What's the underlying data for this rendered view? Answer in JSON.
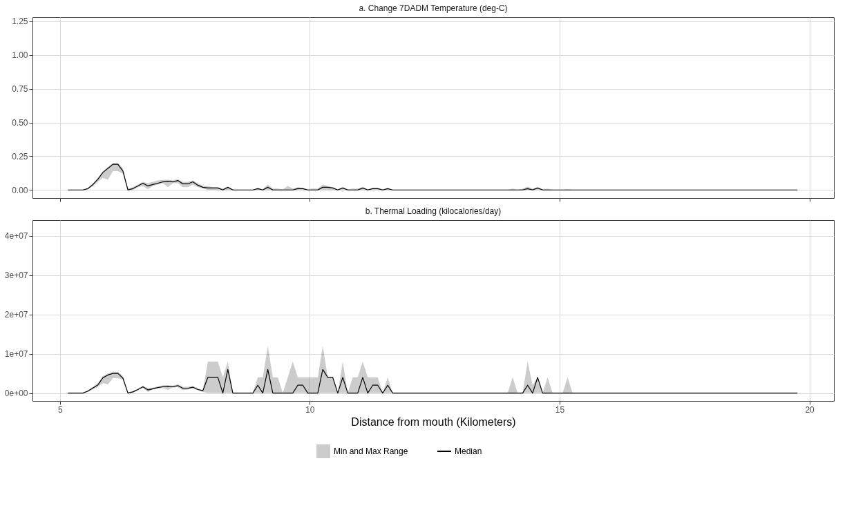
{
  "chart_data": [
    {
      "type": "line",
      "title": "a. Change 7DADM Temperature (deg-C)",
      "tick_labels": "y",
      "grid": true,
      "x": [
        5.16,
        5.46,
        5.56,
        5.66,
        5.76,
        5.86,
        5.96,
        6.06,
        6.16,
        6.26,
        6.36,
        6.46,
        6.56,
        6.66,
        6.76,
        6.86,
        6.96,
        7.06,
        7.16,
        7.26,
        7.36,
        7.46,
        7.56,
        7.66,
        7.76,
        7.86,
        7.96,
        8.06,
        8.16,
        8.26,
        8.36,
        8.46,
        8.56,
        8.86,
        8.96,
        9.06,
        9.16,
        9.26,
        9.36,
        9.46,
        9.56,
        9.66,
        9.76,
        9.86,
        9.96,
        10.06,
        10.16,
        10.26,
        10.36,
        10.46,
        10.56,
        10.66,
        10.76,
        10.86,
        10.96,
        11.06,
        11.16,
        11.26,
        11.36,
        11.46,
        11.56,
        11.66,
        13.96,
        14.06,
        14.16,
        14.26,
        14.36,
        14.46,
        14.56,
        14.66,
        14.76,
        14.86,
        14.96,
        15.06,
        15.16,
        15.26,
        19.76
      ],
      "xlim": [
        4.45,
        20.49
      ],
      "xticks": [
        5,
        10,
        15,
        20
      ],
      "ylim": [
        -0.06,
        1.28
      ],
      "yticks": [
        {
          "value": 0,
          "label": "0.00"
        },
        {
          "value": 0.25,
          "label": "0.25"
        },
        {
          "value": 0.5,
          "label": "0.50"
        },
        {
          "value": 0.75,
          "label": "0.75"
        },
        {
          "value": 1,
          "label": "1.00"
        },
        {
          "value": 1.25,
          "label": "1.25"
        }
      ],
      "series": [
        {
          "color": "#000000",
          "values": [
            0,
            0,
            0.01,
            0.04,
            0.08,
            0.13,
            0.16,
            0.19,
            0.19,
            0.14,
            0,
            0.01,
            0.03,
            0.05,
            0.03,
            0.04,
            0.05,
            0.06,
            0.065,
            0.06,
            0.07,
            0.045,
            0.045,
            0.06,
            0.035,
            0.02,
            0.015,
            0.015,
            0.015,
            0,
            0.02,
            0,
            0,
            0,
            0.01,
            0,
            0.02,
            0,
            0,
            0,
            0,
            0,
            0.01,
            0.01,
            0,
            0,
            0,
            0.02,
            0.02,
            0.015,
            0,
            0.015,
            0,
            0,
            0,
            0.015,
            0,
            0.01,
            0.01,
            0,
            0.01,
            0,
            0,
            0,
            0,
            0,
            0.01,
            0,
            0.015,
            0,
            0,
            0,
            0,
            0,
            0,
            0,
            0
          ],
          "lower": [
            0,
            0,
            0.005,
            0.03,
            0.06,
            0.09,
            0.075,
            0.14,
            0.14,
            0.12,
            0,
            0,
            0.02,
            0.03,
            0.005,
            0.03,
            0.04,
            0.05,
            0.02,
            0.05,
            0.05,
            0.02,
            0.02,
            0.04,
            0.02,
            0.01,
            0,
            0,
            0,
            0,
            0,
            0,
            0,
            0,
            0,
            0,
            0,
            0,
            0,
            0,
            0,
            0,
            0,
            0,
            0,
            0,
            0,
            0,
            0,
            0,
            0,
            0,
            0,
            0,
            0,
            0,
            0,
            0,
            0,
            0,
            0,
            0,
            0,
            0,
            0,
            0,
            0,
            0,
            0,
            0,
            0,
            0,
            0,
            0,
            0,
            0,
            0
          ],
          "upper": [
            0,
            0,
            0.015,
            0.05,
            0.09,
            0.14,
            0.17,
            0.2,
            0.2,
            0.16,
            0.01,
            0.02,
            0.04,
            0.06,
            0.05,
            0.06,
            0.07,
            0.075,
            0.075,
            0.07,
            0.08,
            0.06,
            0.06,
            0.07,
            0.05,
            0.03,
            0.03,
            0.02,
            0.02,
            0.01,
            0.025,
            0.005,
            0,
            0,
            0.015,
            0.005,
            0.04,
            0.01,
            0.01,
            0.005,
            0.03,
            0.01,
            0.02,
            0.015,
            0.005,
            0.01,
            0.01,
            0.04,
            0.03,
            0.02,
            0.005,
            0.02,
            0.005,
            0.01,
            0.01,
            0.02,
            0.005,
            0.015,
            0.015,
            0.005,
            0.015,
            0,
            0,
            0.01,
            0,
            0.01,
            0.025,
            0.01,
            0.02,
            0.005,
            0.01,
            0,
            0,
            0,
            0.005,
            0,
            0
          ]
        }
      ]
    },
    {
      "type": "line",
      "title": "b. Thermal Loading (kilocalories/day)",
      "xlabel": "Distance from mouth (Kilometers)",
      "grid": true,
      "legend": "bottom",
      "annotations": [
        "Min and Max Range"
      ],
      "x": [
        5.16,
        5.46,
        5.56,
        5.66,
        5.76,
        5.86,
        5.96,
        6.06,
        6.16,
        6.26,
        6.36,
        6.46,
        6.56,
        6.66,
        6.76,
        6.86,
        6.96,
        7.06,
        7.16,
        7.26,
        7.36,
        7.46,
        7.56,
        7.66,
        7.76,
        7.86,
        7.96,
        8.06,
        8.16,
        8.26,
        8.36,
        8.46,
        8.56,
        8.86,
        8.96,
        9.06,
        9.16,
        9.26,
        9.36,
        9.46,
        9.56,
        9.66,
        9.76,
        9.86,
        9.96,
        10.06,
        10.16,
        10.26,
        10.36,
        10.46,
        10.56,
        10.66,
        10.76,
        10.86,
        10.96,
        11.06,
        11.16,
        11.26,
        11.36,
        11.46,
        11.56,
        11.66,
        13.96,
        14.06,
        14.16,
        14.26,
        14.36,
        14.46,
        14.56,
        14.66,
        14.76,
        14.86,
        14.96,
        15.06,
        15.16,
        15.26,
        19.76
      ],
      "xlim": [
        4.45,
        20.49
      ],
      "xticks": [
        5,
        10,
        15,
        20
      ],
      "ylim": [
        -2000000,
        44000000
      ],
      "yticks": [
        {
          "value": 0,
          "label": "0e+00"
        },
        {
          "value": 10000000,
          "label": "1e+07"
        },
        {
          "value": 20000000,
          "label": "2e+07"
        },
        {
          "value": 30000000,
          "label": "3e+07"
        },
        {
          "value": 40000000,
          "label": "4e+07"
        }
      ],
      "series": [
        {
          "name": "Median",
          "color": "#000000",
          "values": [
            0,
            0,
            500000,
            1300000,
            2100000,
            3900000,
            4600000,
            5000000,
            5000000,
            3800000,
            0,
            300000,
            900000,
            1600000,
            800000,
            1100000,
            1400000,
            1600000,
            1700000,
            1600000,
            1900000,
            1200000,
            1200000,
            1500000,
            900000,
            600000,
            4000000,
            4000000,
            4000000,
            0,
            6000000,
            0,
            0,
            0,
            2000000,
            0,
            6000000,
            0,
            0,
            0,
            0,
            0,
            2000000,
            2000000,
            0,
            0,
            0,
            6000000,
            4000000,
            4000000,
            0,
            4000000,
            0,
            0,
            0,
            4000000,
            0,
            2000000,
            2000000,
            0,
            2000000,
            0,
            0,
            0,
            0,
            0,
            2000000,
            0,
            4000000,
            0,
            0,
            0,
            0,
            0,
            0,
            0,
            0
          ],
          "lower": [
            0,
            0,
            300000,
            1000000,
            1500000,
            2500000,
            2200000,
            3800000,
            3800000,
            3400000,
            0,
            0,
            700000,
            1300000,
            300000,
            900000,
            1200000,
            1300000,
            800000,
            1400000,
            1500000,
            700000,
            900000,
            1200000,
            700000,
            300000,
            0,
            0,
            0,
            0,
            0,
            0,
            0,
            0,
            0,
            0,
            0,
            0,
            0,
            0,
            0,
            0,
            0,
            0,
            0,
            0,
            0,
            0,
            0,
            0,
            0,
            0,
            0,
            0,
            0,
            0,
            0,
            0,
            0,
            0,
            0,
            0,
            0,
            0,
            0,
            0,
            0,
            0,
            0,
            0,
            0,
            0,
            0,
            0,
            0,
            0,
            0
          ],
          "upper": [
            0,
            0,
            700000,
            1600000,
            2500000,
            4300000,
            5000000,
            5400000,
            5400000,
            4300000,
            200000,
            500000,
            1100000,
            1800000,
            1300000,
            1400000,
            1700000,
            2000000,
            2000000,
            1900000,
            2200000,
            1600000,
            1600000,
            1800000,
            1200000,
            800000,
            8000000,
            8000000,
            8000000,
            4000000,
            8000000,
            0,
            0,
            0,
            4000000,
            4000000,
            12000000,
            4000000,
            4000000,
            0,
            4000000,
            8000000,
            4000000,
            4000000,
            4000000,
            4000000,
            4000000,
            12000000,
            4000000,
            4000000,
            0,
            8000000,
            0,
            4000000,
            4000000,
            8000000,
            4000000,
            4000000,
            4000000,
            0,
            4000000,
            0,
            0,
            4000000,
            0,
            0,
            8000000,
            2000000,
            4000000,
            0,
            4000000,
            0,
            0,
            0,
            4000000,
            0,
            0
          ]
        }
      ]
    }
  ]
}
